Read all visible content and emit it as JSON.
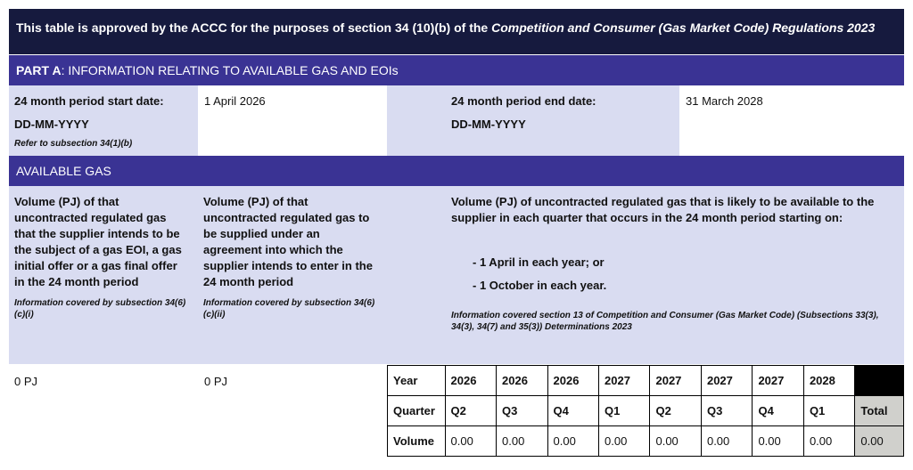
{
  "header": {
    "text": "This table is approved by the ACCC for the purposes of section 34 (10)(b) of the ",
    "italic": "Competition and Consumer (Gas Market Code) Regulations 2023"
  },
  "part_a": {
    "label": "PART A",
    "title": ": INFORMATION RELATING TO AVAILABLE GAS AND EOIs"
  },
  "period": {
    "start_label": "24 month period start date:",
    "start_format": "DD-MM-YYYY",
    "start_note": "Refer to subsection 34(1)(b)",
    "start_value": "1 April 2026",
    "end_label": "24 month period end date:",
    "end_format": "DD-MM-YYYY",
    "end_value": "31 March 2028"
  },
  "available_gas": {
    "title": "AVAILABLE GAS"
  },
  "columns": [
    {
      "heading": "Volume (PJ) of that uncontracted regulated gas that the supplier intends to be the subject of a gas EOI, a gas initial offer or a gas final offer in the 24 month period",
      "note": "Information covered by subsection 34(6)(c)(i)",
      "value": "0 PJ"
    },
    {
      "heading": "Volume (PJ) of that uncontracted regulated gas to be supplied under an agreement into which the supplier intends to enter in the 24 month period",
      "note": "Information covered by subsection 34(6)(c)(ii)",
      "value": "0 PJ"
    },
    {
      "heading": "Volume (PJ) of uncontracted regulated gas that is likely to be available to the supplier in each quarter that occurs in the 24 month period starting on:",
      "bullets": [
        "- 1 April in each year; or",
        "- 1 October in each year."
      ],
      "note": "Information covered section 13 of Competition and Consumer (Gas Market Code) (Subsections 33(3), 34(3), 34(7) and 35(3)) Determinations 2023"
    }
  ],
  "table": {
    "rows": [
      [
        "Year",
        "2026",
        "2026",
        "2026",
        "2027",
        "2027",
        "2027",
        "2027",
        "2028"
      ],
      [
        "Quarter",
        "Q2",
        "Q3",
        "Q4",
        "Q1",
        "Q2",
        "Q3",
        "Q4",
        "Q1",
        "Total"
      ],
      [
        "Volume",
        "0.00",
        "0.00",
        "0.00",
        "0.00",
        "0.00",
        "0.00",
        "0.00",
        "0.00",
        "0.00"
      ]
    ]
  }
}
